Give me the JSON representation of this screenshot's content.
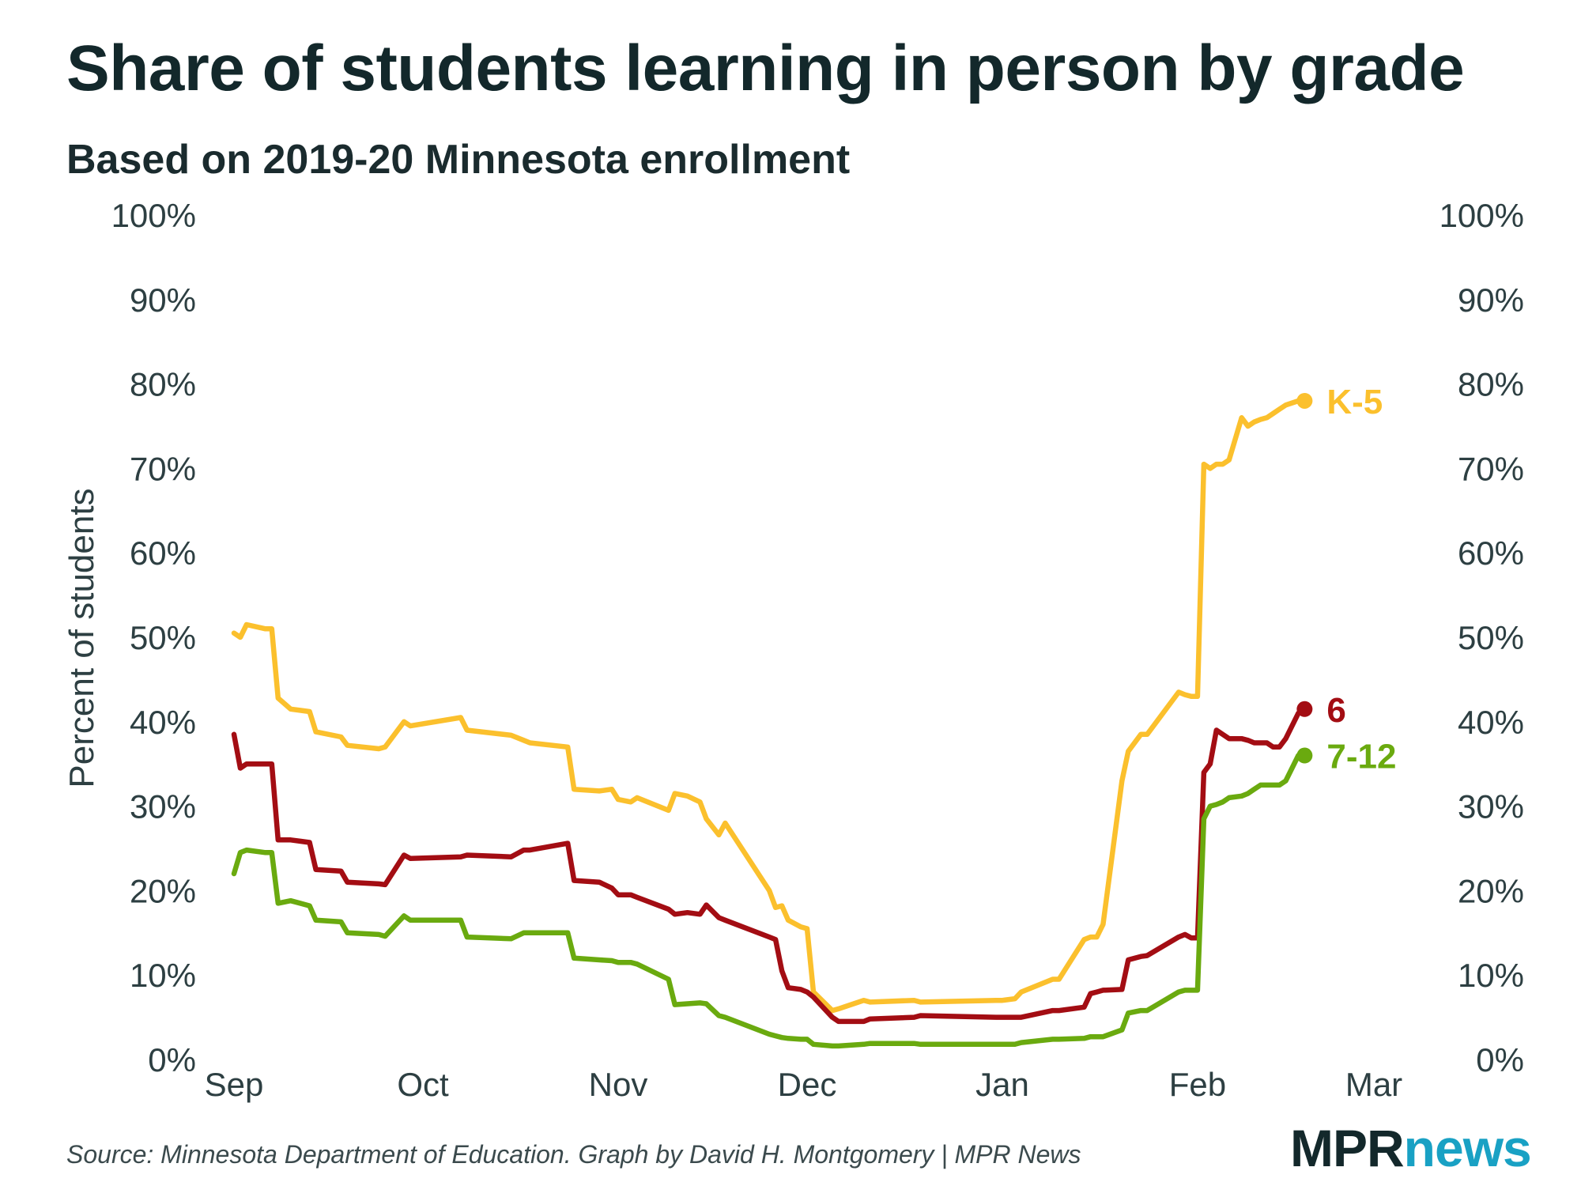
{
  "header": {
    "title": "Share of students learning in person by grade",
    "subtitle": "Based on 2019-20 Minnesota enrollment"
  },
  "footer": {
    "source": "Source: Minnesota Department of Education. Graph by David H. Montgomery | MPR News",
    "logo_part1": "MPR",
    "logo_part2": "news"
  },
  "colors": {
    "k5": "#fbc02d",
    "g6": "#a30d13",
    "g712": "#6aaa0f",
    "text": "#1a2b2e",
    "logo_blue": "#19a1c4"
  },
  "chart_data": {
    "type": "line",
    "title": "Share of students learning in person by grade",
    "subtitle": "Based on 2019-20 Minnesota enrollment",
    "ylabel": "Percent of students",
    "xlabel": "",
    "ylim": [
      0,
      100
    ],
    "yticks": [
      0,
      10,
      20,
      30,
      40,
      50,
      60,
      70,
      80,
      90,
      100
    ],
    "ytick_labels": [
      "0%",
      "10%",
      "20%",
      "30%",
      "40%",
      "50%",
      "60%",
      "70%",
      "80%",
      "90%",
      "100%"
    ],
    "xlim": [
      "2020-09-01",
      "2021-03-01"
    ],
    "xticks": [
      "2020-09-01",
      "2020-10-01",
      "2020-11-01",
      "2020-12-01",
      "2021-01-01",
      "2021-02-01",
      "2021-03-01"
    ],
    "xtick_labels": [
      "Sep",
      "Oct",
      "Nov",
      "Dec",
      "Jan",
      "Feb",
      "Mar"
    ],
    "secondary_y_axis": true,
    "grid": false,
    "legend": "direct labels at line ends",
    "x": [
      "2020-09-01",
      "2020-09-02",
      "2020-09-03",
      "2020-09-06",
      "2020-09-07",
      "2020-09-08",
      "2020-09-10",
      "2020-09-13",
      "2020-09-14",
      "2020-09-18",
      "2020-09-19",
      "2020-09-24",
      "2020-09-25",
      "2020-09-28",
      "2020-09-29",
      "2020-10-07",
      "2020-10-08",
      "2020-10-15",
      "2020-10-17",
      "2020-10-18",
      "2020-10-24",
      "2020-10-25",
      "2020-10-29",
      "2020-10-31",
      "2020-11-01",
      "2020-11-03",
      "2020-11-04",
      "2020-11-09",
      "2020-11-10",
      "2020-11-12",
      "2020-11-14",
      "2020-11-15",
      "2020-11-17",
      "2020-11-18",
      "2020-11-25",
      "2020-11-26",
      "2020-11-27",
      "2020-11-28",
      "2020-11-30",
      "2020-12-01",
      "2020-12-02",
      "2020-12-05",
      "2020-12-06",
      "2020-12-10",
      "2020-12-11",
      "2020-12-18",
      "2020-12-19",
      "2020-12-31",
      "2021-01-01",
      "2021-01-03",
      "2021-01-04",
      "2021-01-09",
      "2021-01-10",
      "2021-01-14",
      "2021-01-15",
      "2021-01-16",
      "2021-01-17",
      "2021-01-20",
      "2021-01-21",
      "2021-01-23",
      "2021-01-24",
      "2021-01-29",
      "2021-01-30",
      "2021-01-31",
      "2021-02-01",
      "2021-02-02",
      "2021-02-03",
      "2021-02-04",
      "2021-02-05",
      "2021-02-06",
      "2021-02-08",
      "2021-02-09",
      "2021-02-10",
      "2021-02-11",
      "2021-02-12",
      "2021-02-13",
      "2021-02-14",
      "2021-02-15",
      "2021-02-17",
      "2021-02-18"
    ],
    "series": [
      {
        "name": "K-5",
        "label": "K-5",
        "values": [
          50.5,
          50,
          51.5,
          51,
          51,
          42.8,
          41.5,
          41.2,
          38.8,
          38.2,
          37.2,
          36.8,
          37,
          40,
          39.5,
          40.5,
          39,
          38.4,
          37.8,
          37.5,
          37,
          32,
          31.8,
          32,
          30.8,
          30.5,
          31,
          29.5,
          31.5,
          31.2,
          30.5,
          28.5,
          26.6,
          28,
          20,
          18,
          18.2,
          16.5,
          15.7,
          15.5,
          8,
          5.8,
          6,
          7,
          6.8,
          7,
          6.8,
          7,
          7,
          7.2,
          8,
          9.5,
          9.5,
          14.2,
          14.5,
          14.5,
          16,
          33,
          36.5,
          38.5,
          38.5,
          43.5,
          43.2,
          43,
          43,
          70.5,
          70,
          70.5,
          70.5,
          71,
          76,
          75,
          75.5,
          75.8,
          76,
          76.5,
          77,
          77.5,
          78,
          78
        ]
      },
      {
        "name": "6",
        "label": "6",
        "values": [
          38.5,
          34.5,
          35,
          35,
          35,
          26,
          26,
          25.7,
          22.5,
          22.3,
          21,
          20.8,
          20.7,
          24.2,
          23.8,
          24,
          24.2,
          24,
          24.8,
          24.8,
          25.6,
          21.2,
          21,
          20.3,
          19.5,
          19.5,
          19.2,
          17.8,
          17.2,
          17.4,
          17.2,
          18.3,
          16.8,
          16.5,
          14.5,
          14.2,
          10.5,
          8.5,
          8.3,
          8,
          7.4,
          5,
          4.5,
          4.5,
          4.8,
          5,
          5.2,
          5,
          5,
          5,
          5,
          5.8,
          5.8,
          6.2,
          7.8,
          8,
          8.2,
          8.3,
          11.8,
          12.2,
          12.3,
          14.5,
          14.8,
          14.4,
          14.4,
          34,
          35,
          39,
          38.5,
          38,
          38,
          37.8,
          37.5,
          37.5,
          37.5,
          37,
          37,
          38,
          41,
          41.5
        ]
      },
      {
        "name": "7-12",
        "label": "7-12",
        "values": [
          22,
          24.5,
          24.8,
          24.5,
          24.5,
          18.5,
          18.8,
          18.2,
          16.5,
          16.3,
          15,
          14.8,
          14.6,
          17,
          16.5,
          16.5,
          14.5,
          14.3,
          15,
          15,
          15,
          12,
          11.8,
          11.7,
          11.5,
          11.5,
          11.3,
          9.5,
          6.5,
          6.6,
          6.7,
          6.6,
          5.2,
          5,
          3,
          2.8,
          2.6,
          2.5,
          2.4,
          2.4,
          1.8,
          1.6,
          1.6,
          1.8,
          1.9,
          1.9,
          1.8,
          1.8,
          1.8,
          1.8,
          2,
          2.4,
          2.4,
          2.5,
          2.7,
          2.7,
          2.7,
          3.5,
          5.5,
          5.8,
          5.8,
          8,
          8.2,
          8.2,
          8.2,
          28.5,
          30,
          30.2,
          30.5,
          31,
          31.2,
          31.5,
          32,
          32.5,
          32.5,
          32.5,
          32.5,
          33,
          36,
          36
        ]
      }
    ]
  }
}
